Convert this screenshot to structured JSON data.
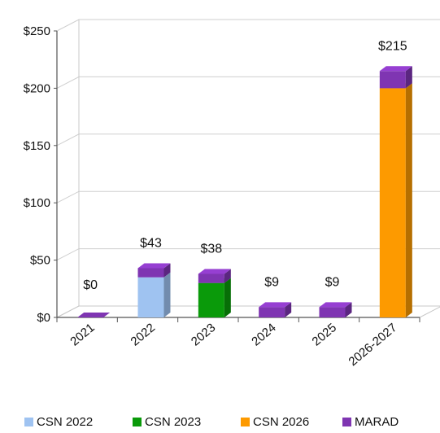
{
  "chart_data": {
    "type": "bar",
    "stacked": true,
    "three_d": true,
    "categories": [
      "2021",
      "2022",
      "2023",
      "2024",
      "2025",
      "2026-2027"
    ],
    "series": [
      {
        "name": "CSN 2022",
        "color": "#9fc3f1",
        "values": [
          0,
          35,
          0,
          0,
          0,
          0
        ]
      },
      {
        "name": "CSN 2023",
        "color": "#0a9a0a",
        "values": [
          0,
          0,
          30,
          0,
          0,
          0
        ]
      },
      {
        "name": "CSN 2026",
        "color": "#fd9a00",
        "values": [
          0,
          0,
          0,
          0,
          0,
          200
        ]
      },
      {
        "name": "MARAD",
        "color": "#7f35b2",
        "values": [
          0,
          8,
          8,
          9,
          9,
          15
        ]
      }
    ],
    "totals": [
      0,
      43,
      38,
      9,
      9,
      215
    ],
    "data_labels": [
      "$0",
      "$43",
      "$38",
      "$9",
      "$9",
      "$215"
    ],
    "y_ticks": [
      0,
      50,
      100,
      150,
      200,
      250
    ],
    "y_tick_labels": [
      "$0",
      "$50",
      "$100",
      "$150",
      "$200",
      "$250"
    ],
    "ylim": [
      0,
      250
    ],
    "grid": true,
    "legend_position": "bottom"
  }
}
